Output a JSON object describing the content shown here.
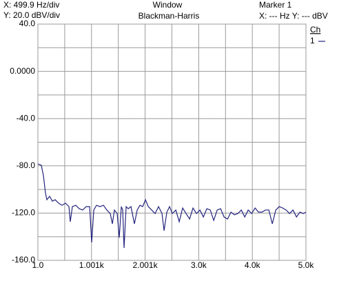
{
  "chart_data": {
    "type": "line",
    "header": {
      "x_scale": "X: 499.9 Hz/div",
      "y_scale": "Y: 20.0 dBV/div",
      "window_label": "Window",
      "window": "Blackman-Harris",
      "marker": "Marker 1",
      "marker_readout": "X: --- Hz Y: --- dBV"
    },
    "legend_title": "Ch",
    "x": [
      1,
      65,
      104,
      142,
      168,
      220,
      271,
      323,
      387,
      451,
      515,
      580,
      605,
      644,
      708,
      773,
      837,
      901,
      966,
      1004,
      1043,
      1094,
      1158,
      1223,
      1287,
      1351,
      1390,
      1428,
      1480,
      1518,
      1557,
      1583,
      1608,
      1647,
      1686,
      1737,
      1801,
      1853,
      1904,
      1956,
      2007,
      2059,
      2123,
      2187,
      2251,
      2316,
      2354,
      2406,
      2457,
      2508,
      2573,
      2637,
      2701,
      2765,
      2830,
      2894,
      2959,
      3023,
      3087,
      3152,
      3216,
      3280,
      3345,
      3409,
      3473,
      3538,
      3602,
      3666,
      3730,
      3795,
      3859,
      3923,
      3988,
      4052,
      4116,
      4181,
      4245,
      4309,
      4373,
      4438,
      4502,
      4566,
      4631,
      4695,
      4759,
      4824,
      4888,
      4952,
      5000
    ],
    "series": [
      {
        "name": "1",
        "color": "#23237e",
        "values": [
          -78.4,
          -79.5,
          -88.3,
          -102.9,
          -108.7,
          -105.8,
          -109.9,
          -108.7,
          -111.6,
          -113.4,
          -111.6,
          -114.5,
          -127.3,
          -114.5,
          -113.4,
          -116.3,
          -117.4,
          -114.5,
          -114.5,
          -144.8,
          -117.4,
          -113.4,
          -114.5,
          -113.4,
          -117.4,
          -120.4,
          -129.1,
          -117.4,
          -120.4,
          -140.8,
          -114.5,
          -117.4,
          -149.5,
          -114.5,
          -116.3,
          -114.5,
          -129.1,
          -117.4,
          -113.4,
          -114.5,
          -108.7,
          -114.5,
          -117.4,
          -120.4,
          -114.5,
          -120.4,
          -134.9,
          -119.2,
          -114.5,
          -120.4,
          -117.4,
          -127.3,
          -115.7,
          -120.4,
          -125.0,
          -115.7,
          -120.4,
          -117.4,
          -123.3,
          -116.3,
          -117.4,
          -126.2,
          -117.4,
          -116.3,
          -123.3,
          -125.0,
          -119.2,
          -121.5,
          -120.4,
          -117.4,
          -123.3,
          -117.4,
          -120.4,
          -115.7,
          -119.2,
          -119.2,
          -117.4,
          -117.4,
          -129.1,
          -117.4,
          -114.5,
          -115.7,
          -117.4,
          -120.4,
          -117.4,
          -123.3,
          -119.2,
          -120.4,
          -119.2
        ]
      }
    ],
    "xlim": [
      1,
      5000
    ],
    "xticks": [
      {
        "value": 1,
        "label": "1.0"
      },
      {
        "value": 1000.8,
        "label": "1.001k"
      },
      {
        "value": 2000.6,
        "label": "2.001k"
      },
      {
        "value": 3000.4,
        "label": "3.0k"
      },
      {
        "value": 4000.2,
        "label": "4.0k"
      },
      {
        "value": 5000,
        "label": "5.0k"
      }
    ],
    "ylim": [
      -160,
      40
    ],
    "yticks": [
      {
        "value": 40,
        "label": "40.0"
      },
      {
        "value": 0,
        "label": "0.0000"
      },
      {
        "value": -40,
        "label": "-40.0"
      },
      {
        "value": -80,
        "label": "-80.0"
      },
      {
        "value": -120,
        "label": "-120.0"
      },
      {
        "value": -160,
        "label": "-160.0"
      }
    ],
    "grid": true
  }
}
